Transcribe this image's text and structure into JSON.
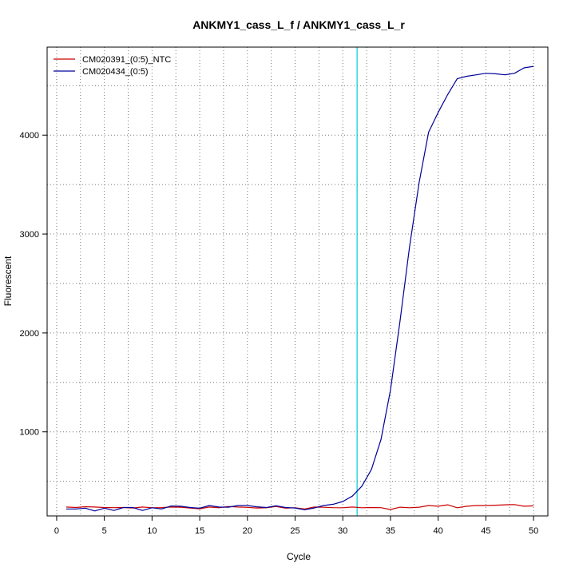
{
  "chart_data": {
    "type": "line",
    "title": "ANKMY1_cass_L_f / ANKMY1_cass_L_r",
    "xlabel": "Cycle",
    "ylabel": "Fluorescent",
    "xlim": [
      -1,
      51.5
    ],
    "ylim": [
      150,
      4890
    ],
    "xticks": [
      0,
      5,
      10,
      15,
      20,
      25,
      30,
      35,
      40,
      45,
      50
    ],
    "yticks": [
      1000,
      2000,
      3000,
      4000
    ],
    "grid": true,
    "legend_position": "top-left",
    "threshold_cycle": 31.5,
    "threshold_color": "#00cccc",
    "series": [
      {
        "name": "CM020391_(0:5)_NTC",
        "color": "#cc0000",
        "x": [
          1,
          2,
          3,
          4,
          5,
          6,
          7,
          8,
          9,
          10,
          11,
          12,
          13,
          14,
          15,
          16,
          17,
          18,
          19,
          20,
          21,
          22,
          23,
          24,
          25,
          26,
          27,
          28,
          29,
          30,
          31,
          32,
          33,
          34,
          35,
          36,
          37,
          38,
          39,
          40,
          41,
          42,
          43,
          44,
          45,
          46,
          47,
          48,
          49,
          50
        ],
        "values": [
          240,
          235,
          243,
          240,
          235,
          233,
          235,
          230,
          240,
          232,
          234,
          240,
          238,
          230,
          222,
          240,
          232,
          245,
          240,
          236,
          230,
          232,
          245,
          228,
          232,
          220,
          240,
          237,
          233,
          232,
          240,
          232,
          235,
          233,
          215,
          238,
          232,
          238,
          255,
          248,
          262,
          232,
          248,
          255,
          255,
          258,
          262,
          265,
          248,
          252
        ]
      },
      {
        "name": "CM020434_(0:5)",
        "color": "#000099",
        "x": [
          1,
          2,
          3,
          4,
          5,
          6,
          7,
          8,
          9,
          10,
          11,
          12,
          13,
          14,
          15,
          16,
          17,
          18,
          19,
          20,
          21,
          22,
          23,
          24,
          25,
          26,
          27,
          28,
          29,
          30,
          31,
          32,
          33,
          34,
          35,
          36,
          37,
          38,
          39,
          40,
          41,
          42,
          43,
          44,
          45,
          46,
          47,
          48,
          49,
          50
        ],
        "values": [
          220,
          220,
          228,
          200,
          228,
          205,
          235,
          235,
          205,
          232,
          220,
          250,
          248,
          235,
          228,
          255,
          240,
          238,
          255,
          255,
          242,
          235,
          252,
          235,
          230,
          212,
          230,
          255,
          268,
          295,
          350,
          450,
          620,
          920,
          1420,
          2120,
          2870,
          3520,
          4030,
          4230,
          4410,
          4570,
          4595,
          4610,
          4625,
          4620,
          4610,
          4625,
          4680,
          4695
        ]
      }
    ]
  }
}
